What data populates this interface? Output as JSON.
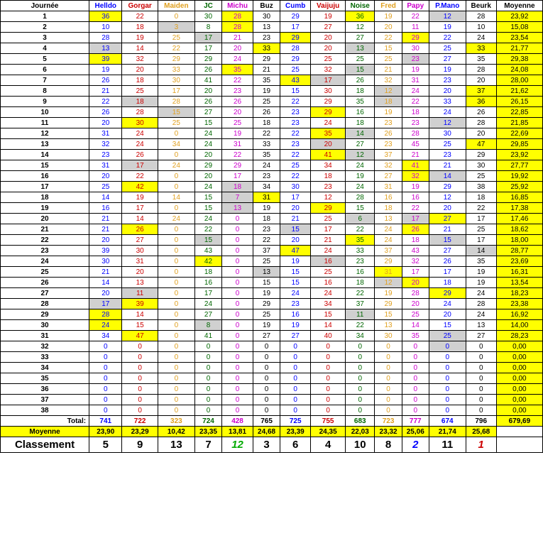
{
  "headers": [
    {
      "t": "Journée",
      "c": "#000000"
    },
    {
      "t": "Helldo",
      "c": "#0000ff"
    },
    {
      "t": "Gorgar",
      "c": "#cc0000"
    },
    {
      "t": "Maiden",
      "c": "#e0a020"
    },
    {
      "t": "JC",
      "c": "#006600"
    },
    {
      "t": "Michu",
      "c": "#cc00cc"
    },
    {
      "t": "Buz",
      "c": "#000000"
    },
    {
      "t": "Cumb",
      "c": "#0000ff"
    },
    {
      "t": "Vaijuju",
      "c": "#cc0000"
    },
    {
      "t": "Noise",
      "c": "#006600"
    },
    {
      "t": "Fred",
      "c": "#e0a020"
    },
    {
      "t": "Papy",
      "c": "#cc00cc"
    },
    {
      "t": "P.Mano",
      "c": "#0000ff"
    },
    {
      "t": "Beurk",
      "c": "#000000"
    },
    {
      "t": "Moyenne",
      "c": "#000000"
    }
  ],
  "colColors": [
    "#0000ff",
    "#cc0000",
    "#e0a020",
    "#006600",
    "#cc00cc",
    "#000000",
    "#0000ff",
    "#cc0000",
    "#006600",
    "#e0a020",
    "#cc00cc",
    "#0000ff",
    "#000000",
    "#000000"
  ],
  "rows": [
    [
      "36y",
      "22",
      "0",
      "30",
      "28y",
      "30",
      "29",
      "19",
      "36y",
      "19",
      "22",
      "12g",
      "28",
      "23,92y"
    ],
    [
      "10",
      "18",
      "3g",
      "8",
      "28y",
      "13",
      "17",
      "27",
      "12",
      "20",
      "11",
      "19",
      "10",
      "15,08y"
    ],
    [
      "28",
      "19",
      "25",
      "17g",
      "21",
      "23",
      "29y",
      "20",
      "27",
      "22",
      "29y",
      "22",
      "24",
      "23,54y"
    ],
    [
      "13g",
      "14",
      "22",
      "17",
      "20",
      "33y",
      "28",
      "20",
      "13g",
      "15",
      "30",
      "25",
      "33y",
      "21,77y"
    ],
    [
      "39y",
      "32",
      "29",
      "29",
      "24",
      "29",
      "29",
      "25",
      "25",
      "25",
      "23g",
      "27",
      "35",
      "29,38y"
    ],
    [
      "19",
      "20",
      "33",
      "26",
      "35y",
      "21",
      "25",
      "32",
      "15g",
      "21",
      "19",
      "19",
      "28",
      "24,08y"
    ],
    [
      "26",
      "18",
      "30",
      "41",
      "22",
      "35",
      "43y",
      "17g",
      "26",
      "32",
      "31",
      "23",
      "20",
      "28,00y"
    ],
    [
      "21",
      "25",
      "17",
      "20",
      "23",
      "19",
      "15",
      "30",
      "18",
      "12g",
      "24",
      "20",
      "37y",
      "21,62y"
    ],
    [
      "22",
      "18g",
      "28",
      "26",
      "26",
      "25",
      "22",
      "29",
      "35",
      "18g",
      "22",
      "33",
      "36y",
      "26,15y"
    ],
    [
      "26",
      "28",
      "15g",
      "27",
      "20",
      "26",
      "23",
      "29y",
      "16",
      "19",
      "18",
      "24",
      "26",
      "22,85y"
    ],
    [
      "20",
      "30y",
      "25",
      "15",
      "25",
      "18",
      "23",
      "24",
      "18",
      "23",
      "23",
      "12g",
      "28",
      "21,85y"
    ],
    [
      "31",
      "24",
      "0",
      "24",
      "19",
      "22",
      "22",
      "35y",
      "14g",
      "26",
      "28",
      "30",
      "20",
      "22,69y"
    ],
    [
      "32",
      "24",
      "34",
      "24",
      "31",
      "33",
      "23",
      "20g",
      "27",
      "23",
      "45",
      "25",
      "47y",
      "29,85y"
    ],
    [
      "23",
      "26",
      "0",
      "20",
      "22",
      "35",
      "22",
      "41y",
      "12g",
      "37",
      "21",
      "23",
      "29",
      "23,92y"
    ],
    [
      "31",
      "17g",
      "24",
      "29",
      "29",
      "24",
      "25",
      "34",
      "24",
      "32",
      "41y",
      "21",
      "30",
      "27,77y"
    ],
    [
      "20",
      "22",
      "0",
      "20",
      "17",
      "23",
      "22",
      "18",
      "19",
      "27",
      "32y",
      "14g",
      "25",
      "19,92y"
    ],
    [
      "25",
      "42y",
      "0",
      "24",
      "18g",
      "34",
      "30",
      "23",
      "24",
      "31",
      "19",
      "29",
      "38",
      "25,92y"
    ],
    [
      "14",
      "19",
      "14",
      "15",
      "7g",
      "31y",
      "17",
      "12",
      "28",
      "16",
      "16",
      "12",
      "18",
      "16,85y"
    ],
    [
      "16",
      "17",
      "0",
      "15",
      "13g",
      "19",
      "20",
      "29y",
      "15",
      "18",
      "22",
      "20",
      "22",
      "17,38y"
    ],
    [
      "21",
      "14",
      "24",
      "24",
      "0",
      "18",
      "21",
      "25",
      "6g",
      "13",
      "17g",
      "27y",
      "17",
      "17,46y"
    ],
    [
      "21",
      "26y",
      "0",
      "22",
      "0",
      "23",
      "15g",
      "17",
      "22",
      "24",
      "26y",
      "21",
      "25",
      "18,62y"
    ],
    [
      "20",
      "27",
      "0",
      "15g",
      "0",
      "22",
      "20",
      "21",
      "35y",
      "24",
      "18",
      "15g",
      "17",
      "18,00y"
    ],
    [
      "39",
      "30",
      "0",
      "43",
      "0",
      "37",
      "47y",
      "24",
      "33",
      "37",
      "43",
      "27",
      "14g",
      "28,77y"
    ],
    [
      "30",
      "31",
      "0",
      "42y",
      "0",
      "25",
      "19",
      "16g",
      "23",
      "29",
      "32",
      "26",
      "35",
      "23,69y"
    ],
    [
      "21",
      "20",
      "0",
      "18",
      "0",
      "13g",
      "15",
      "25",
      "16",
      "31y",
      "17",
      "17",
      "19",
      "16,31y"
    ],
    [
      "14",
      "13",
      "0",
      "16",
      "0",
      "15",
      "15",
      "16",
      "18",
      "12g",
      "20y",
      "18",
      "19",
      "13,54y"
    ],
    [
      "20",
      "11g",
      "0",
      "17",
      "0",
      "19",
      "24",
      "24",
      "22",
      "19",
      "28",
      "29y",
      "24",
      "18,23y"
    ],
    [
      "17g",
      "39y",
      "0",
      "24",
      "0",
      "29",
      "23",
      "34",
      "37",
      "29",
      "20",
      "24",
      "28",
      "23,38y"
    ],
    [
      "28y",
      "14",
      "0",
      "27",
      "0",
      "25",
      "16",
      "15",
      "11g",
      "15",
      "25",
      "20",
      "24",
      "16,92y"
    ],
    [
      "24y",
      "15",
      "0",
      "8g",
      "0",
      "19",
      "19",
      "14",
      "22",
      "13",
      "14",
      "15",
      "13",
      "14,00y"
    ],
    [
      "34",
      "47y",
      "0",
      "41",
      "0",
      "27",
      "27",
      "40",
      "34",
      "30",
      "35",
      "25g",
      "27",
      "28,23y"
    ],
    [
      "0",
      "0",
      "0",
      "0",
      "0",
      "0",
      "0",
      "0",
      "0",
      "0",
      "0",
      "0g",
      "0",
      "0,00y"
    ],
    [
      "0",
      "0",
      "0",
      "0",
      "0",
      "0",
      "0",
      "0",
      "0",
      "0",
      "0",
      "0",
      "0",
      "0,00y"
    ],
    [
      "0",
      "0",
      "0",
      "0",
      "0",
      "0",
      "0",
      "0",
      "0",
      "0",
      "0",
      "0",
      "0",
      "0,00y"
    ],
    [
      "0",
      "0",
      "0",
      "0",
      "0",
      "0",
      "0",
      "0",
      "0",
      "0",
      "0",
      "0",
      "0",
      "0,00y"
    ],
    [
      "0",
      "0",
      "0",
      "0",
      "0",
      "0",
      "0",
      "0",
      "0",
      "0",
      "0",
      "0",
      "0",
      "0,00y"
    ],
    [
      "0",
      "0",
      "0",
      "0",
      "0",
      "0",
      "0",
      "0",
      "0",
      "0",
      "0",
      "0",
      "0",
      "0,00y"
    ],
    [
      "0",
      "0",
      "0",
      "0",
      "0",
      "0",
      "0",
      "0",
      "0",
      "0",
      "0",
      "0",
      "0",
      "0,00y"
    ]
  ],
  "total": [
    "Total:",
    "741",
    "722",
    "323",
    "724",
    "428",
    "765",
    "725",
    "755",
    "683",
    "723",
    "777",
    "674",
    "796",
    "679,69y"
  ],
  "moyenne": [
    "Moyenne",
    "23,90",
    "23,29",
    "10,42",
    "23,35",
    "13,81",
    "24,68",
    "23,39",
    "24,35",
    "22,03",
    "23,32",
    "25,06",
    "21,74",
    "25,68",
    ""
  ],
  "classement": [
    "Classement",
    "5",
    "9",
    "13",
    "7",
    "12",
    "3",
    "6",
    "4",
    "10",
    "8",
    "2",
    "11",
    "1",
    ""
  ],
  "rankColors": {
    "5": "#00aa00",
    "11": "#0000ff",
    "13": "#cc0000"
  }
}
